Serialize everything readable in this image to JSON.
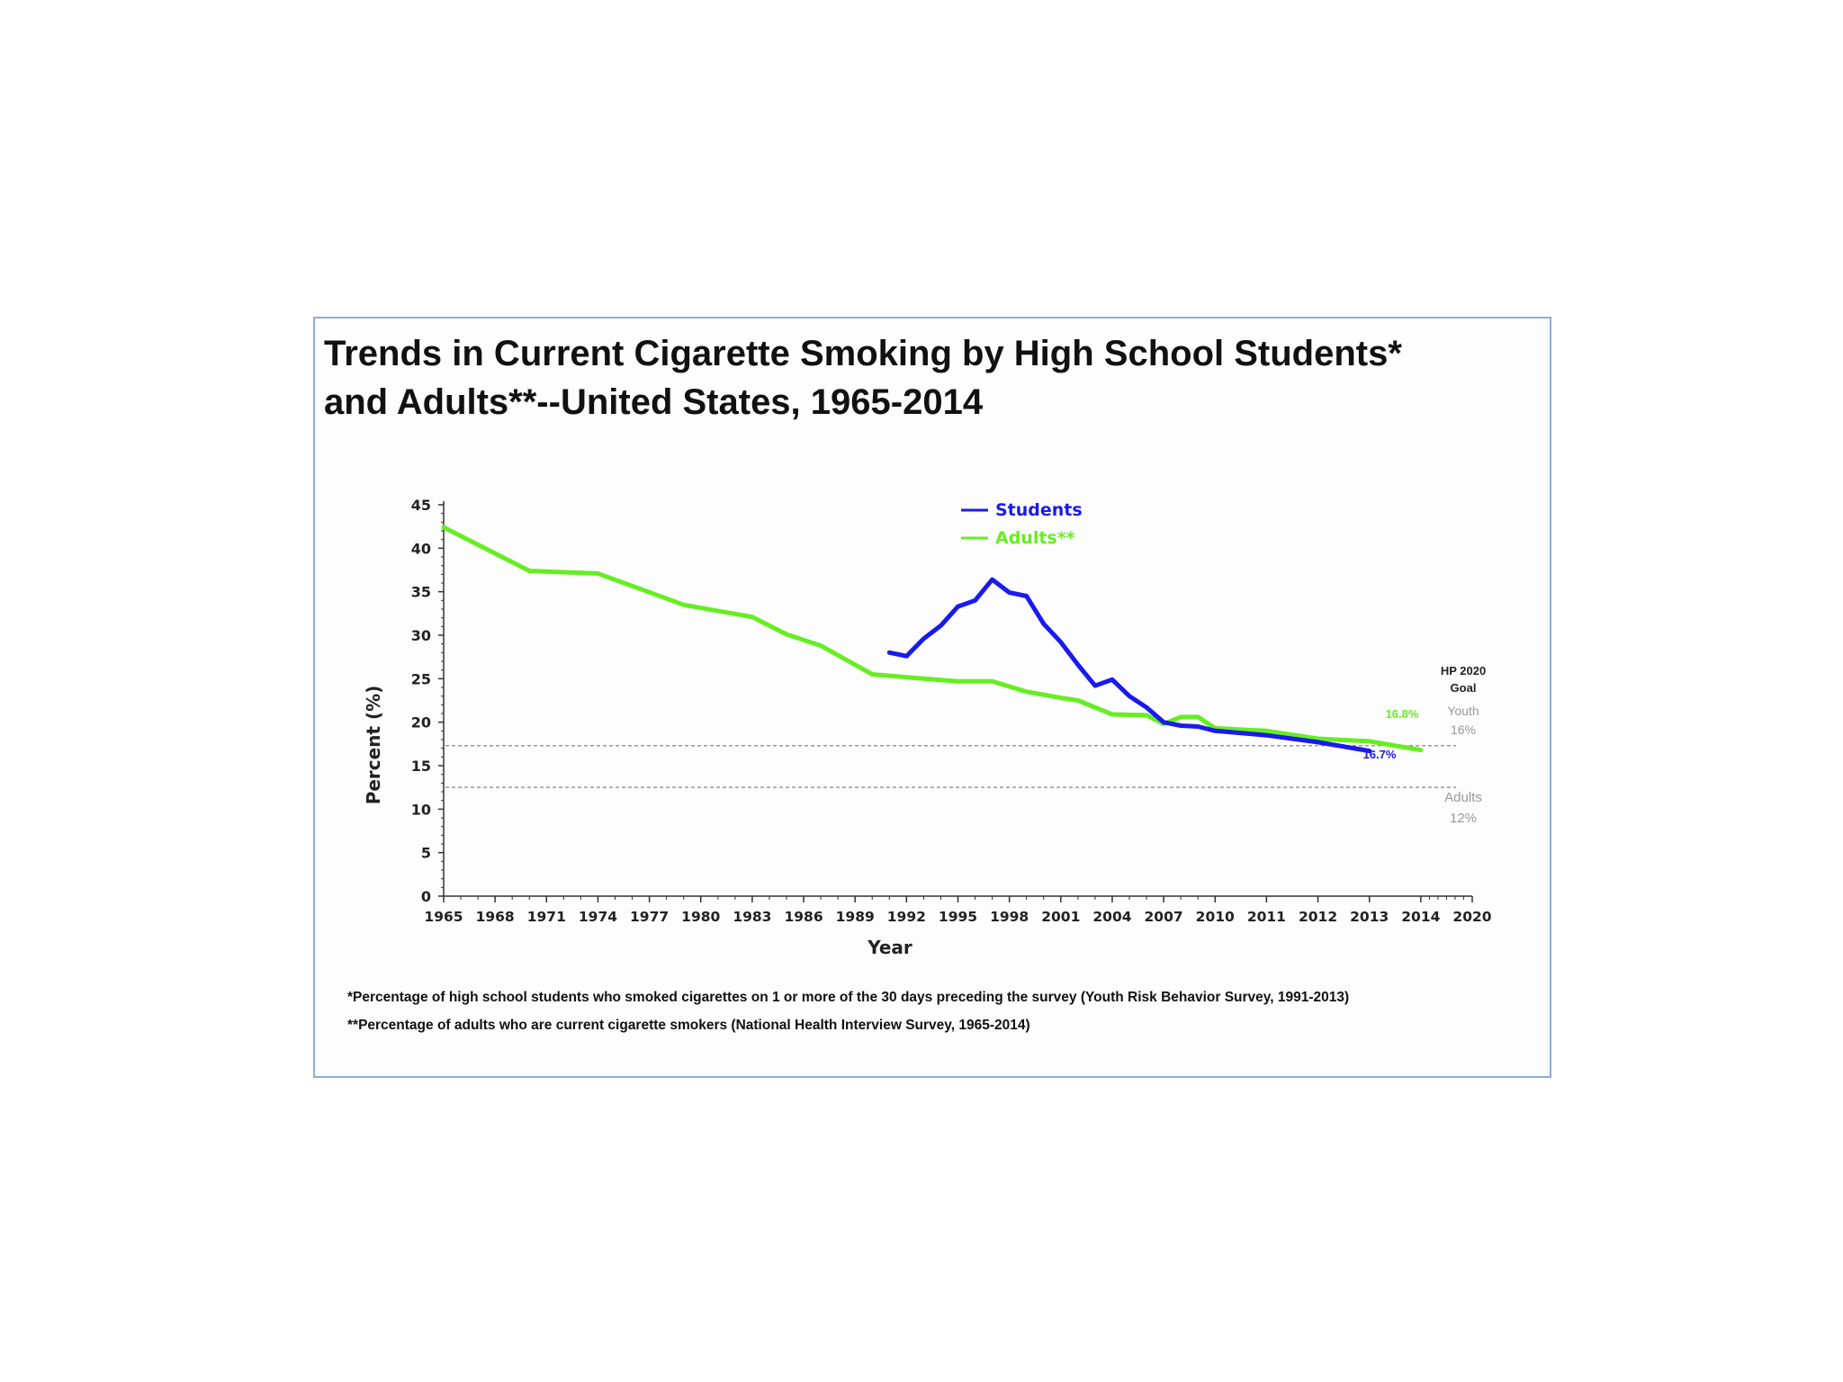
{
  "chart_data": {
    "type": "line",
    "title": "Trends in Current Cigarette Smoking by High School Students*",
    "title_line2": "and Adults**--United States, 1965-2014",
    "xlabel": "Year",
    "ylabel": "Percent (%)",
    "ylim": [
      0,
      45
    ],
    "y_ticks": [
      "0",
      "5",
      "10",
      "15",
      "20",
      "25",
      "30",
      "35",
      "40",
      "45"
    ],
    "x_ticks": [
      "1965",
      "1968",
      "1971",
      "1974",
      "1977",
      "1980",
      "1983",
      "1986",
      "1989",
      "1992",
      "1995",
      "1998",
      "2001",
      "2004",
      "2007",
      "2010",
      "2011",
      "2012",
      "2013",
      "2014",
      "2020"
    ],
    "grid": false,
    "legend_position": "top-center",
    "series": [
      {
        "name": "Students",
        "color": "#1a1aee",
        "x": [
          1991,
          1992,
          1993,
          1994,
          1995,
          1996,
          1997,
          1998,
          1999,
          2000,
          2001,
          2002,
          2003,
          2004,
          2005,
          2006,
          2007,
          2008,
          2009,
          2010,
          2011,
          2012,
          2013
        ],
        "y": [
          28.0,
          27.6,
          29.6,
          31.1,
          33.3,
          34.0,
          36.4,
          34.9,
          34.5,
          31.3,
          29.2,
          26.6,
          24.2,
          24.9,
          23.0,
          21.7,
          20.0,
          19.6,
          19.5,
          19.0,
          18.5,
          17.7,
          16.7
        ]
      },
      {
        "name": "Adults**",
        "color": "#66ee22",
        "x": [
          1965,
          1970,
          1974,
          1979,
          1983,
          1985,
          1987,
          1990,
          1993,
          1995,
          1997,
          1999,
          2001,
          2002,
          2004,
          2006,
          2007,
          2008,
          2009,
          2010,
          2011,
          2012,
          2013,
          2014
        ],
        "y": [
          42.4,
          37.4,
          37.1,
          33.5,
          32.1,
          30.1,
          28.8,
          25.5,
          25.0,
          24.7,
          24.7,
          23.5,
          22.8,
          22.5,
          20.9,
          20.8,
          19.8,
          20.6,
          20.6,
          19.3,
          19.0,
          18.1,
          17.8,
          16.8
        ]
      }
    ],
    "end_labels": {
      "students": "16.7%",
      "adults": "16.8%"
    },
    "goals": {
      "heading_line1": "HP 2020",
      "heading_line2": "Goal",
      "youth_label": "Youth",
      "youth_pct": "16%",
      "youth_value": 17.3,
      "adults_label": "Adults",
      "adults_pct": "12%",
      "adults_value": 12.5
    },
    "footnotes": [
      "*Percentage of high school students who smoked cigarettes on 1 or more of the 30 days preceding the survey (Youth Risk Behavior Survey,  1991-2013)",
      "**Percentage of adults who are current cigarette smokers (National Health Interview Survey, 1965-2014)"
    ]
  }
}
